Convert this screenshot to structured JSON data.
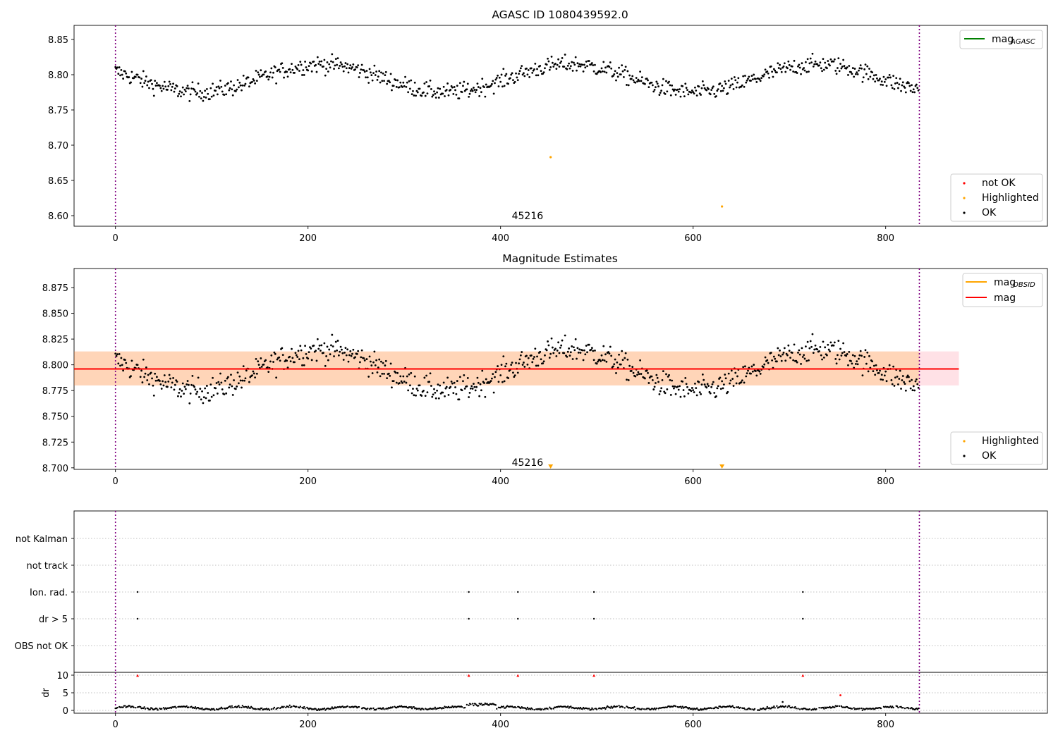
{
  "chart_data": [
    {
      "type": "scatter",
      "title": "AGASC ID 1080439592.0",
      "xlim": [
        -43,
        968
      ],
      "ylim": [
        8.585,
        8.87
      ],
      "x_ticks": [
        0,
        200,
        400,
        600,
        800
      ],
      "y_ticks": [
        8.6,
        8.65,
        8.7,
        8.75,
        8.8,
        8.85
      ],
      "y_tick_labels": [
        "8.60",
        "8.65",
        "8.70",
        "8.75",
        "8.80",
        "8.85"
      ],
      "vlines": [
        0,
        835
      ],
      "annotation": {
        "text": "45216",
        "x": 417,
        "y": 8.598
      },
      "series_style": {
        "base": 8.795,
        "amp": 0.022,
        "period": 258,
        "phase": 150,
        "noise": 0.011,
        "n": 835
      },
      "highlighted_points": [
        {
          "x": 452,
          "y": 8.683
        },
        {
          "x": 630,
          "y": 8.613
        }
      ],
      "legend_line": [
        {
          "label": "mag",
          "sub": "AGASC",
          "color": "#008000"
        }
      ],
      "legend_points": [
        {
          "label": "not OK",
          "color": "#ff0000"
        },
        {
          "label": "Highlighted",
          "color": "#ffa500"
        },
        {
          "label": "OK",
          "color": "#000000"
        }
      ]
    },
    {
      "type": "scatter",
      "title": "Magnitude Estimates",
      "xlim": [
        -43,
        968
      ],
      "ylim": [
        8.6985,
        8.8935
      ],
      "x_ticks": [
        0,
        200,
        400,
        600,
        800
      ],
      "y_ticks": [
        8.7,
        8.725,
        8.75,
        8.775,
        8.8,
        8.825,
        8.85,
        8.875
      ],
      "y_tick_labels": [
        "8.700",
        "8.725",
        "8.750",
        "8.775",
        "8.800",
        "8.825",
        "8.850",
        "8.875"
      ],
      "vlines": [
        0,
        835
      ],
      "annotation": {
        "text": "45216",
        "x": 417,
        "y": 8.704
      },
      "mag_line": {
        "value": 8.796,
        "x_range": [
          -43,
          876
        ],
        "color": "#ff0000"
      },
      "mag_band": {
        "low": 8.78,
        "high": 8.813,
        "x_range": [
          -43,
          876
        ]
      },
      "obsid_band": {
        "low": 8.78,
        "high": 8.813,
        "x_range": [
          -43,
          835
        ]
      },
      "clipped_markers": [
        {
          "x": 452
        },
        {
          "x": 630
        }
      ],
      "legend_line": [
        {
          "label": "mag",
          "sub": "OBSID",
          "color": "#ffa500"
        },
        {
          "label": "mag",
          "sub": "",
          "color": "#ff0000"
        }
      ],
      "legend_points": [
        {
          "label": "Highlighted",
          "color": "#ffa500"
        },
        {
          "label": "OK",
          "color": "#000000"
        }
      ]
    },
    {
      "type": "scatter",
      "title": "",
      "xlim": [
        -43,
        968
      ],
      "categories": [
        "not Kalman",
        "not track",
        "Ion. rad.",
        "dr > 5",
        "OBS not OK"
      ],
      "flag_points": {
        "Ion. rad.": [
          23,
          367,
          418,
          497,
          714
        ],
        "dr > 5": [
          23,
          367,
          418,
          497,
          714
        ]
      },
      "vlines": [
        0,
        835
      ]
    },
    {
      "type": "scatter",
      "title": "",
      "xlim": [
        -43,
        968
      ],
      "ylim": [
        -0.8,
        10.8
      ],
      "ylabel": "dr",
      "x_ticks": [
        0,
        200,
        400,
        600,
        800
      ],
      "y_ticks": [
        0,
        5,
        10
      ],
      "y_tick_labels": [
        "0",
        "5",
        "10"
      ],
      "vlines": [
        0,
        835
      ],
      "red_markers": [
        23,
        367,
        418,
        497,
        714
      ],
      "red_points": [
        {
          "x": 753,
          "y": 4.3
        }
      ],
      "outlier_points": [
        {
          "x": 693,
          "y": 2.4
        }
      ]
    }
  ]
}
